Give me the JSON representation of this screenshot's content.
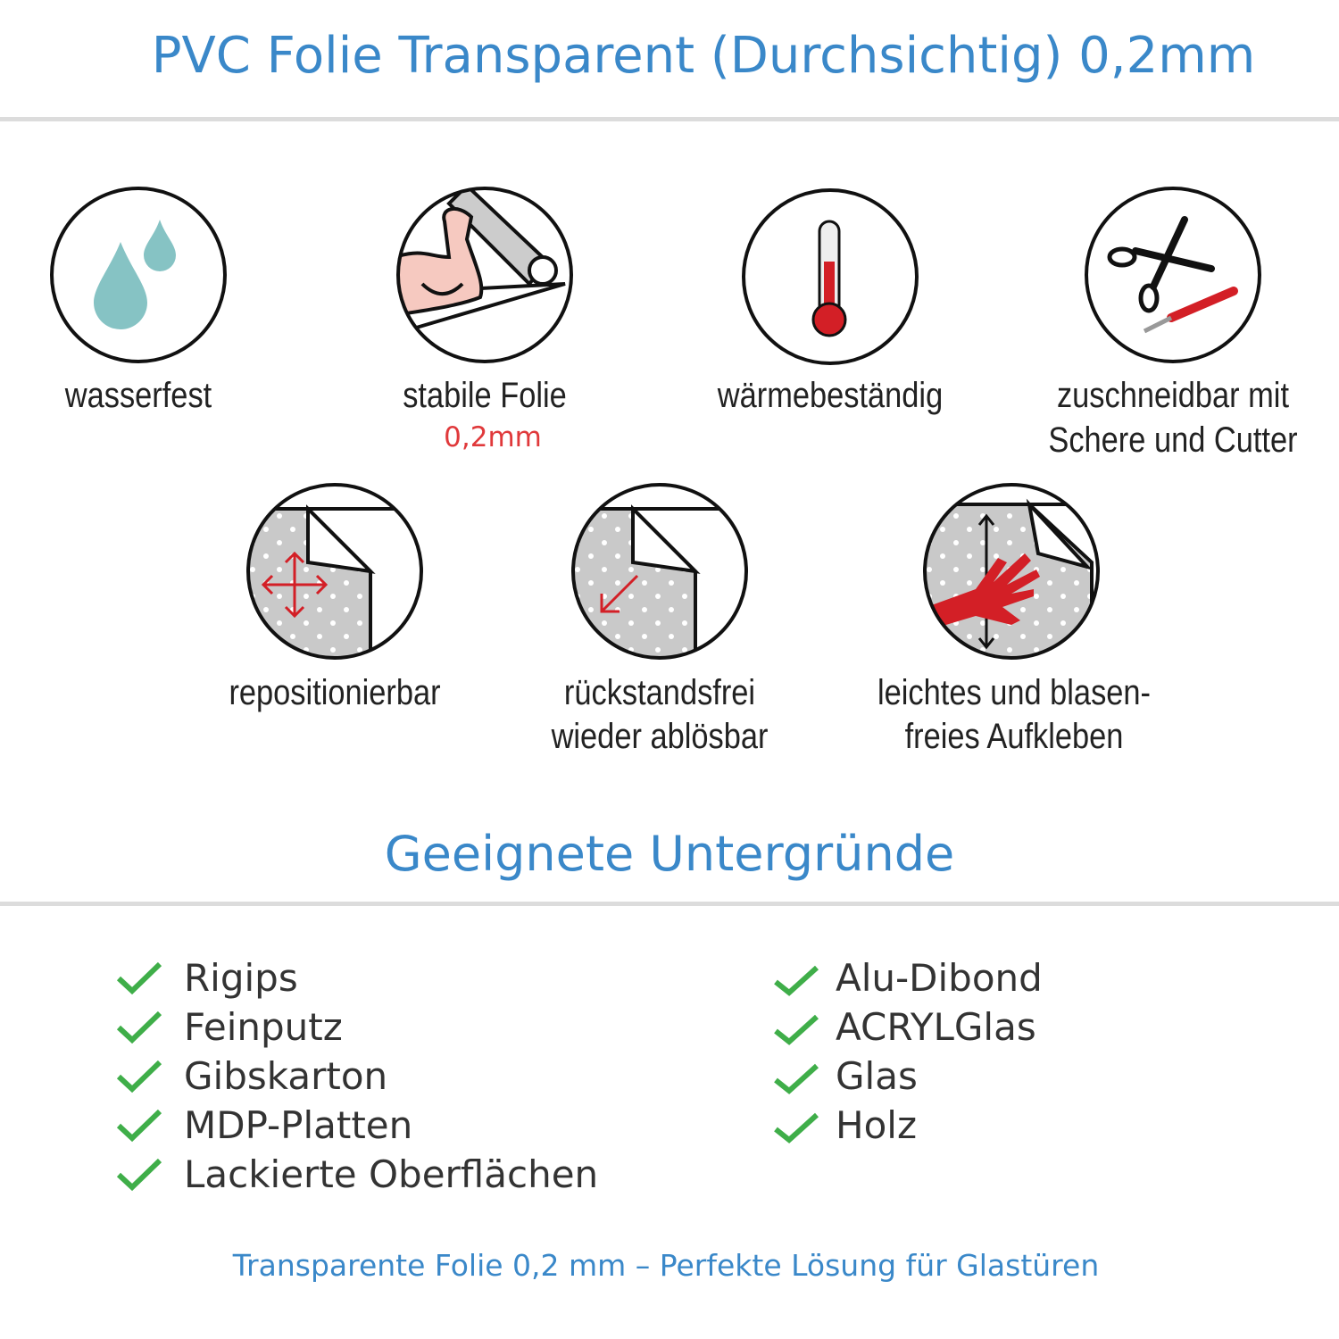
{
  "header": {
    "title": "PVC Folie Transparent (Durchsichtig) 0,2mm"
  },
  "features": [
    {
      "icon": "water-drops-icon",
      "label": "wasserfest"
    },
    {
      "icon": "flexed-arm-icon",
      "label": "stabile Folie",
      "sublabel": "0,2mm"
    },
    {
      "icon": "thermometer-icon",
      "label": "wärmebeständig"
    },
    {
      "icon": "scissors-cutter-icon",
      "label": "zuschneidbar mit",
      "label2": "Schere und Cutter"
    },
    {
      "icon": "move-arrows-icon",
      "label": "repositionierbar"
    },
    {
      "icon": "peel-arrow-icon",
      "label": "rückstandsfrei",
      "label2": "wieder ablösbar"
    },
    {
      "icon": "hand-smooth-icon",
      "label": "leichtes und blasen-",
      "label2": "freies Aufkleben"
    }
  ],
  "section": {
    "title": "Geeignete Untergründe"
  },
  "surfaces_left": [
    "Rigips",
    "Feinputz",
    "Gibskarton",
    "MDP-Platten",
    "Lackierte Oberflächen"
  ],
  "surfaces_right": [
    "Alu-Dibond",
    "ACRYLGlas",
    "Glas",
    "Holz"
  ],
  "footer": {
    "text": "Transparente Folie 0,2 mm – Perfekte Lösung für Glastüren"
  },
  "colors": {
    "accent": "#3a88c9",
    "check": "#3fae49",
    "red": "#d31f26",
    "drop": "#86c3c4"
  }
}
